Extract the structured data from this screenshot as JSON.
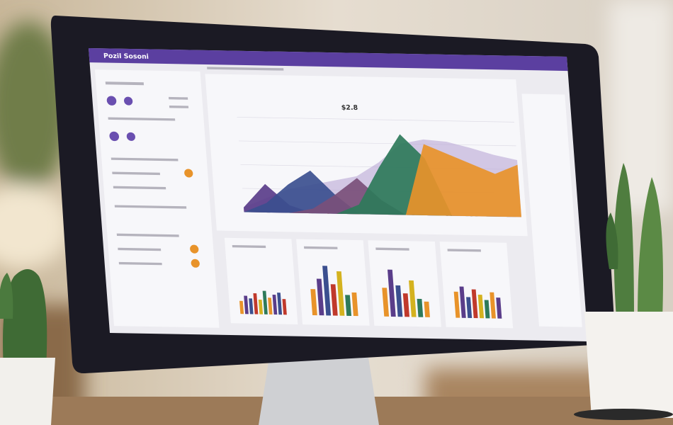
{
  "header": {
    "title": "Pozil Sosoni"
  },
  "main_chart": {
    "type": "area",
    "label": "$2.8",
    "ylim": [
      0,
      100
    ],
    "x": [
      0,
      1,
      2,
      3,
      4,
      5,
      6,
      7,
      8,
      9,
      10,
      11,
      12
    ],
    "series": [
      {
        "color": "#b9a6d6",
        "values": [
          5,
          15,
          25,
          30,
          35,
          40,
          55,
          75,
          80,
          78,
          72,
          65,
          60
        ]
      },
      {
        "color": "#5a3d8a",
        "values": [
          5,
          30,
          8,
          0,
          0,
          0,
          0,
          0,
          0,
          0,
          0,
          0,
          0
        ]
      },
      {
        "color": "#3b4f8f",
        "values": [
          0,
          10,
          30,
          45,
          20,
          0,
          0,
          0,
          0,
          0,
          0,
          0,
          0
        ]
      },
      {
        "color": "#7a4f7a",
        "values": [
          0,
          0,
          0,
          5,
          20,
          38,
          15,
          0,
          0,
          0,
          0,
          0,
          0
        ]
      },
      {
        "color": "#2e7a5a",
        "values": [
          0,
          0,
          0,
          0,
          0,
          10,
          50,
          85,
          60,
          0,
          0,
          0,
          0
        ]
      },
      {
        "color": "#e8932a",
        "values": [
          0,
          0,
          0,
          0,
          0,
          0,
          0,
          0,
          75,
          65,
          55,
          45,
          55
        ]
      }
    ]
  },
  "palette": [
    "#e8932a",
    "#5a3d8a",
    "#3b4f8f",
    "#c0392b",
    "#d4b21f",
    "#2e7a5a"
  ],
  "mini_charts": [
    {
      "ylim": [
        0,
        100
      ],
      "values": [
        25,
        35,
        30,
        40,
        28,
        45,
        32,
        38,
        42,
        30
      ]
    },
    {
      "ylim": [
        0,
        100
      ],
      "values": [
        50,
        70,
        95,
        60,
        85,
        40,
        45
      ]
    },
    {
      "ylim": [
        0,
        100
      ],
      "values": [
        55,
        90,
        60,
        45,
        70,
        35,
        30
      ]
    },
    {
      "ylim": [
        0,
        100
      ],
      "values": [
        50,
        60,
        40,
        55,
        45,
        35,
        50,
        40
      ]
    }
  ]
}
